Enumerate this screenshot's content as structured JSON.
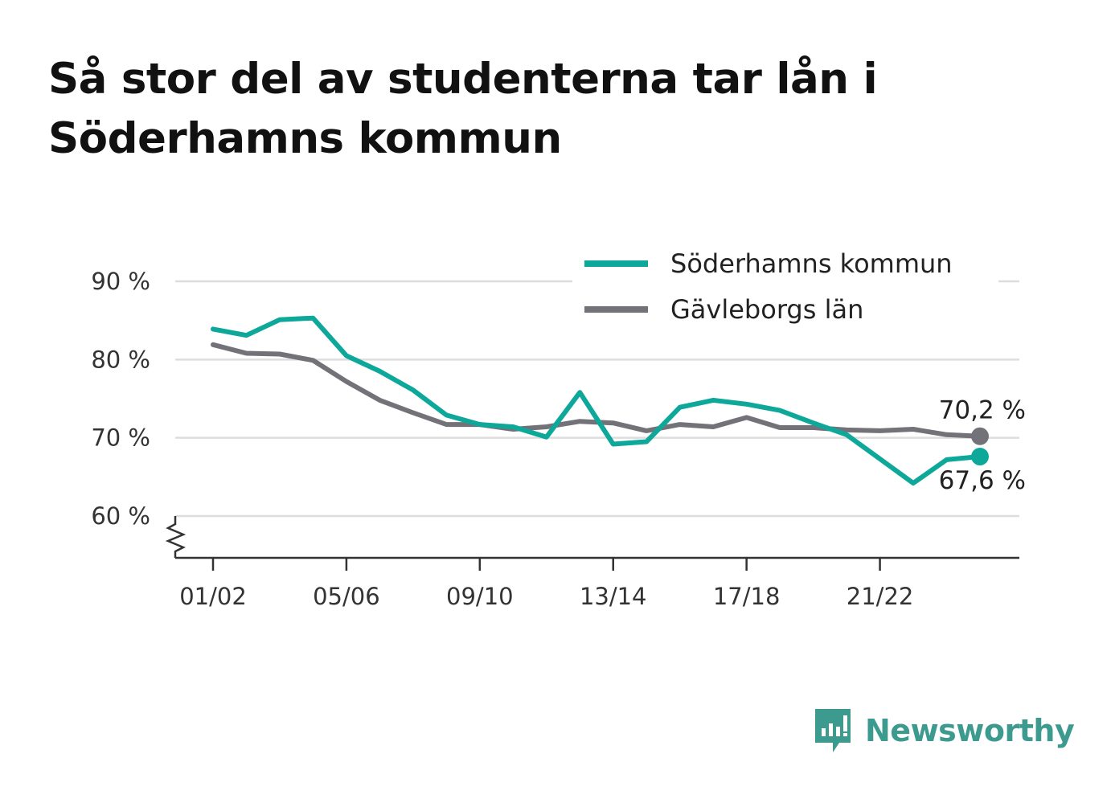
{
  "title": "Så stor del av studenterna tar lån i Söderhamns kommun",
  "brand": "Newsworthy",
  "colors": {
    "soderhamn": "#0ea89a",
    "gavleborg": "#737278",
    "grid": "#dddddd",
    "axis": "#333333",
    "brand": "#3c9a8f"
  },
  "chart_data": {
    "type": "line",
    "x": [
      "01/02",
      "02/03",
      "03/04",
      "04/05",
      "05/06",
      "06/07",
      "07/08",
      "08/09",
      "09/10",
      "10/11",
      "11/12",
      "12/13",
      "13/14",
      "14/15",
      "15/16",
      "16/17",
      "17/18",
      "18/19",
      "19/20",
      "20/21",
      "21/22",
      "22/23",
      "23/24",
      "24/25"
    ],
    "x_ticks": [
      "01/02",
      "05/06",
      "09/10",
      "13/14",
      "17/18",
      "21/22"
    ],
    "y_ticks": [
      60,
      70,
      80,
      90
    ],
    "y_tick_labels": [
      "60 %",
      "70 %",
      "80 %",
      "90 %"
    ],
    "ylim": [
      54.5,
      93
    ],
    "grid": true,
    "legend_position": "top-right",
    "series": [
      {
        "name": "Söderhamns kommun",
        "color": "#0ea89a",
        "values": [
          83.9,
          83.1,
          85.1,
          85.3,
          80.5,
          78.5,
          76.1,
          72.9,
          71.7,
          71.4,
          70.1,
          75.8,
          69.2,
          69.5,
          73.9,
          74.8,
          74.3,
          73.5,
          71.9,
          70.4,
          67.3,
          64.2,
          67.2,
          67.6
        ],
        "end_label": "67,6 %"
      },
      {
        "name": "Gävleborgs län",
        "color": "#737278",
        "values": [
          81.9,
          80.8,
          80.7,
          79.9,
          77.2,
          74.8,
          73.2,
          71.7,
          71.7,
          71.1,
          71.4,
          72.1,
          71.9,
          70.9,
          71.7,
          71.4,
          72.6,
          71.3,
          71.3,
          71.0,
          70.9,
          71.1,
          70.4,
          70.2
        ],
        "end_label": "70,2 %"
      }
    ]
  }
}
